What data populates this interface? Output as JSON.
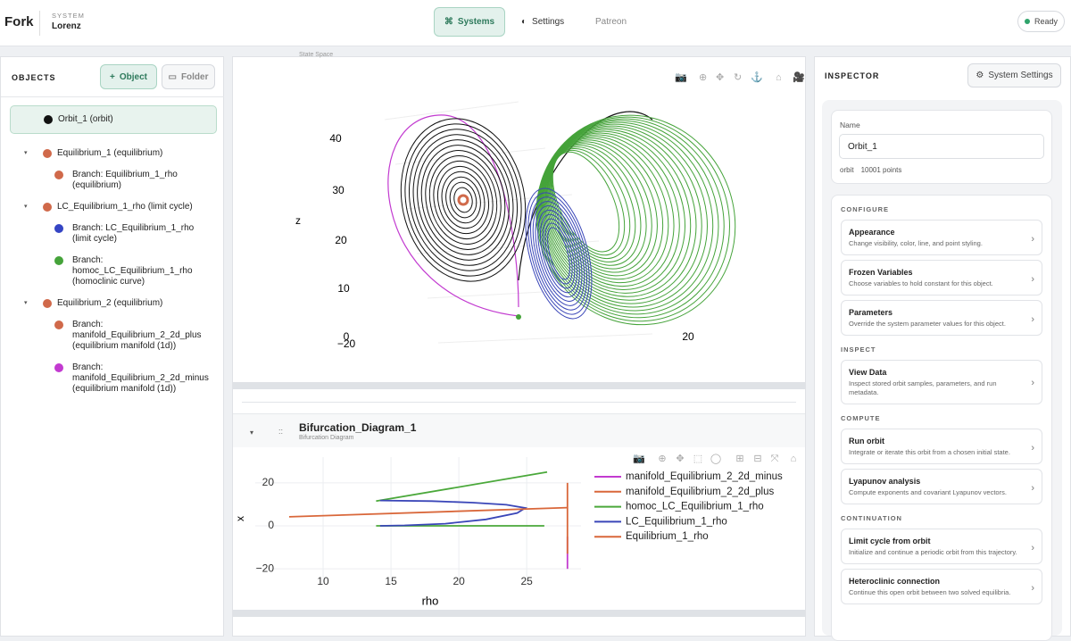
{
  "header": {
    "brand": "Fork",
    "system_label": "SYSTEM",
    "system_name": "Lorenz",
    "tabs": [
      "Systems",
      "Settings",
      "Patreon"
    ],
    "status": "Ready"
  },
  "objects": {
    "title": "OBJECTS",
    "buttons": [
      "Object",
      "Folder"
    ],
    "items": [
      {
        "label": "Orbit_1 (orbit)",
        "color": "#111111",
        "children": []
      },
      {
        "label": "Equilibrium_1 (equilibrium)",
        "color": "#d0694a",
        "children": [
          {
            "label": "Branch: Equilibrium_1_rho (equilibrium)",
            "color": "#d0694a"
          }
        ]
      },
      {
        "label": "LC_Equilibrium_1_rho (limit cycle)",
        "color": "#d0694a",
        "children": [
          {
            "label": "Branch: LC_Equilibrium_1_rho (limit cycle)",
            "color": "#3545c4"
          },
          {
            "label": "Branch: homoc_LC_Equilibrium_1_rho (homoclinic curve)",
            "color": "#45a33a"
          }
        ]
      },
      {
        "label": "Equilibrium_2 (equilibrium)",
        "color": "#d0694a",
        "children": [
          {
            "label": "Branch: manifold_Equilibrium_2_2d_plus (equilibrium manifold (1d))",
            "color": "#d0694a"
          },
          {
            "label": "Branch: manifold_Equilibrium_2_2d_minus (equilibrium manifold (1d))",
            "color": "#c23ad0"
          }
        ]
      }
    ]
  },
  "state_space": {
    "label": "State Space",
    "axis_label": "z",
    "tick_labels": [
      "40",
      "30",
      "20",
      "10",
      "0",
      "−20",
      "20"
    ]
  },
  "chart_data": {
    "type": "line",
    "title": "Bifurcation_Diagram_1",
    "subtitle": "Bifurcation Diagram",
    "x_label": "rho",
    "y_label": "x",
    "xlim": [
      5,
      29
    ],
    "ylim": [
      -27,
      32
    ],
    "xticks": [
      10,
      15,
      20,
      25
    ],
    "yticks": [
      20,
      0,
      {
        "value": -20,
        "label": "−20"
      }
    ],
    "grid": true,
    "series": [
      {
        "name": "manifold_Equilibrium_2_2d_minus",
        "color": "#c23ad0",
        "x": [
          28,
          28
        ],
        "values": [
          -5,
          -20
        ]
      },
      {
        "name": "manifold_Equilibrium_2_2d_plus",
        "color": "#d9673a",
        "x": [
          28,
          28
        ],
        "values": [
          20,
          -13
        ]
      },
      {
        "name": "homoc_LC_Equilibrium_1_rho",
        "color": "#4aa83a",
        "x": [
          13.9,
          26.5,
          null,
          13.9,
          26.3
        ],
        "values": [
          11.5,
          25,
          null,
          0,
          0
        ]
      },
      {
        "name": "LC_Equilibrium_1_rho",
        "color": "#3a46b8",
        "x": [
          14.2,
          18,
          21,
          23.5,
          24.9,
          24.3,
          22,
          19,
          16,
          14.2
        ],
        "values": [
          11.8,
          11.5,
          10.8,
          9.8,
          8.3,
          6,
          3,
          1,
          0.2,
          0
        ]
      },
      {
        "name": "Equilibrium_1_rho",
        "color": "#d9673a",
        "x": [
          7.5,
          28
        ],
        "values": [
          4.2,
          8.5
        ]
      }
    ]
  },
  "inspector": {
    "title": "INSPECTOR",
    "settings_button": "System Settings",
    "name_label": "Name",
    "name_value": "Orbit_1",
    "kind": "orbit",
    "points": "10001 points",
    "sections": [
      {
        "title": "CONFIGURE",
        "items": [
          {
            "title": "Appearance",
            "description": "Change visibility, color, line, and point styling."
          },
          {
            "title": "Frozen Variables",
            "description": "Choose variables to hold constant for this object."
          },
          {
            "title": "Parameters",
            "description": "Override the system parameter values for this object."
          }
        ]
      },
      {
        "title": "INSPECT",
        "items": [
          {
            "title": "View Data",
            "description": "Inspect stored orbit samples, parameters, and run metadata."
          }
        ]
      },
      {
        "title": "COMPUTE",
        "items": [
          {
            "title": "Run orbit",
            "description": "Integrate or iterate this orbit from a chosen initial state."
          },
          {
            "title": "Lyapunov analysis",
            "description": "Compute exponents and covariant Lyapunov vectors."
          }
        ]
      },
      {
        "title": "CONTINUATION",
        "items": [
          {
            "title": "Limit cycle from orbit",
            "description": "Initialize and continue a periodic orbit from this trajectory."
          },
          {
            "title": "Heteroclinic connection",
            "description": "Continue this open orbit between two solved equilibria."
          }
        ]
      }
    ]
  }
}
